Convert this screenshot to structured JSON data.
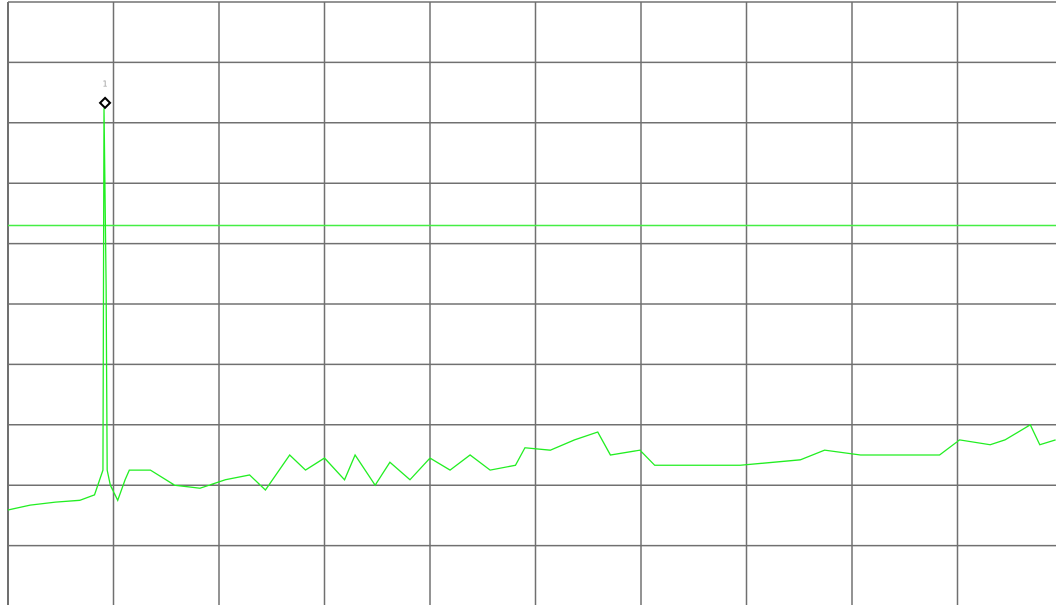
{
  "chart_data": {
    "type": "line",
    "x": [
      0,
      0.21,
      0.45,
      0.68,
      0.82,
      0.9,
      0.91,
      0.93,
      0.94,
      0.97,
      1.04,
      1.11,
      1.15,
      1.35,
      1.58,
      1.82,
      2.06,
      2.29,
      2.44,
      2.67,
      2.82,
      3.0,
      3.19,
      3.29,
      3.48,
      3.62,
      3.81,
      4.0,
      4.19,
      4.38,
      4.57,
      4.81,
      4.9,
      5.14,
      5.37,
      5.59,
      5.71,
      5.99,
      6.13,
      6.56,
      6.94,
      7.51,
      7.74,
      8.08,
      8.45,
      8.83,
      9.02,
      9.31,
      9.45,
      9.69,
      9.78,
      9.93
    ],
    "series": [
      {
        "color": "#22ee22",
        "values": [
          1.59,
          1.67,
          1.72,
          1.75,
          1.84,
          2.25,
          8.24,
          5.31,
          2.25,
          2.0,
          1.75,
          2.09,
          2.25,
          2.25,
          2.0,
          1.95,
          2.09,
          2.17,
          1.92,
          2.5,
          2.25,
          2.45,
          2.09,
          2.5,
          2.0,
          2.38,
          2.09,
          2.45,
          2.25,
          2.5,
          2.25,
          2.33,
          2.62,
          2.58,
          2.75,
          2.88,
          2.5,
          2.58,
          2.33,
          2.33,
          2.33,
          2.42,
          2.58,
          2.5,
          2.5,
          2.5,
          2.75,
          2.67,
          2.75,
          3.0,
          2.67,
          2.75
        ]
      }
    ],
    "xlim": [
      0,
      10
    ],
    "ylim": [
      0,
      10
    ],
    "xticks": [
      0,
      1,
      2,
      3,
      4,
      5,
      6,
      7,
      8,
      9,
      10
    ],
    "yticks": [
      0,
      1,
      2,
      3,
      4,
      5,
      6,
      7,
      8,
      9,
      10
    ],
    "grid": true,
    "threshold": 6.3,
    "threshold_color": "#44ee44",
    "markers": [
      {
        "label": "1",
        "x": 0.92,
        "y": 8.33
      }
    ]
  }
}
